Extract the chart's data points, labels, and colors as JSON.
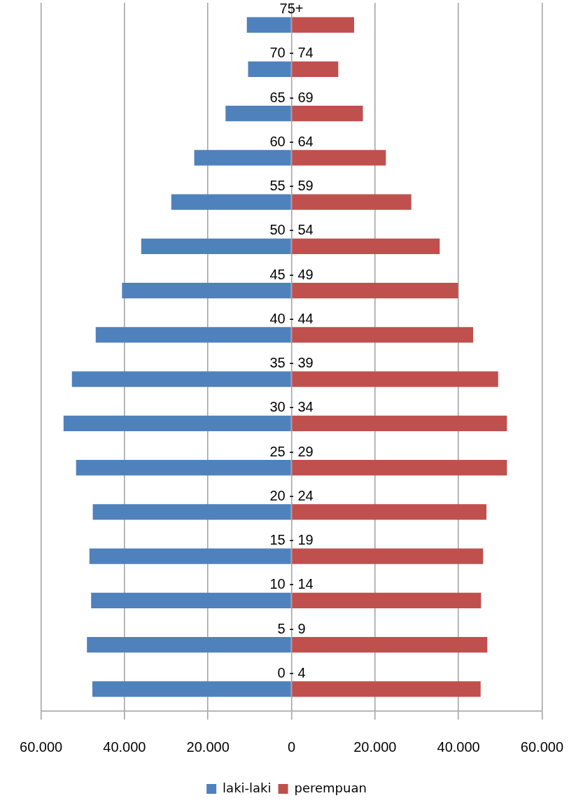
{
  "chart_data": {
    "type": "bar",
    "orientation": "horizontal",
    "stacked": true,
    "categories": [
      "75+",
      "70 - 74",
      "65 - 69",
      "60 - 64",
      "55 - 59",
      "50 - 54",
      "45 - 49",
      "40 - 44",
      "35 - 39",
      "30 - 34",
      "25 - 29",
      "20 - 24",
      "15 - 19",
      "10 - 14",
      "5 - 9",
      "0 - 4"
    ],
    "series": [
      {
        "name": "laki-laki",
        "color": "#4f81bd",
        "values": [
          -10700,
          -10400,
          -15800,
          -23300,
          -28800,
          -36000,
          -40600,
          -46900,
          -52600,
          -54600,
          -51600,
          -47600,
          -48400,
          -48000,
          -49000,
          -47700
        ]
      },
      {
        "name": "perempuan",
        "color": "#c0504d",
        "values": [
          15000,
          11200,
          17100,
          22600,
          28700,
          35500,
          39900,
          43500,
          49500,
          51600,
          51600,
          46700,
          45900,
          45400,
          46900,
          45300
        ]
      }
    ],
    "xlim": [
      -60000,
      60000
    ],
    "xticks": [
      {
        "value": -60000,
        "label": "60.000"
      },
      {
        "value": -40000,
        "label": "40.000"
      },
      {
        "value": -20000,
        "label": "20.000"
      },
      0,
      {
        "value": 20000,
        "label": "20.000"
      },
      {
        "value": 40000,
        "label": "40.000"
      },
      {
        "value": 60000,
        "label": "60.000"
      }
    ],
    "grid": "x",
    "legend": "bottom"
  }
}
